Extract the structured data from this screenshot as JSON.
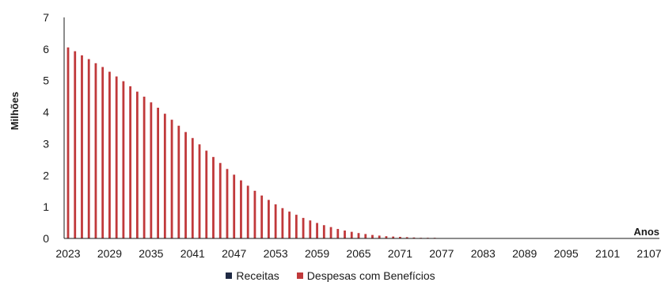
{
  "chart_data": {
    "type": "bar",
    "xlabel": "Anos",
    "ylabel": "Milhões",
    "ylim": [
      0,
      7
    ],
    "yticks": [
      0,
      1,
      2,
      3,
      4,
      5,
      6,
      7
    ],
    "xticks": [
      "2023",
      "2029",
      "2035",
      "2041",
      "2047",
      "2053",
      "2059",
      "2065",
      "2071",
      "2077",
      "2083",
      "2089",
      "2095",
      "2101",
      "2107"
    ],
    "x_start": 2023,
    "x_end": 2107,
    "grid": false,
    "legend_position": "bottom",
    "colors": {
      "receitas": "#1f2a44",
      "despesas": "#c0393b"
    },
    "series": [
      {
        "name": "Receitas",
        "values": []
      },
      {
        "name": "Despesas com Benefícios",
        "values": [
          6.05,
          5.93,
          5.8,
          5.68,
          5.55,
          5.43,
          5.28,
          5.13,
          4.98,
          4.82,
          4.65,
          4.49,
          4.31,
          4.14,
          3.95,
          3.76,
          3.57,
          3.37,
          3.18,
          2.98,
          2.78,
          2.58,
          2.39,
          2.2,
          2.02,
          1.84,
          1.67,
          1.51,
          1.36,
          1.22,
          1.08,
          0.96,
          0.85,
          0.75,
          0.65,
          0.57,
          0.49,
          0.42,
          0.36,
          0.3,
          0.25,
          0.21,
          0.17,
          0.14,
          0.11,
          0.09,
          0.07,
          0.06,
          0.05,
          0.04,
          0.03,
          0.02,
          0.02,
          0.02,
          0.01,
          0.01,
          0.01,
          0.01,
          0.01,
          0.01,
          0.0,
          0.0,
          0.0,
          0.0,
          0.0,
          0.0,
          0.0,
          0.0,
          0.0,
          0.0,
          0.0,
          0.0,
          0.0,
          0.0,
          0.0,
          0.0,
          0.0,
          0.0,
          0.0,
          0.0,
          0.0,
          0.0,
          0.0,
          0.0,
          0.0
        ]
      }
    ]
  }
}
